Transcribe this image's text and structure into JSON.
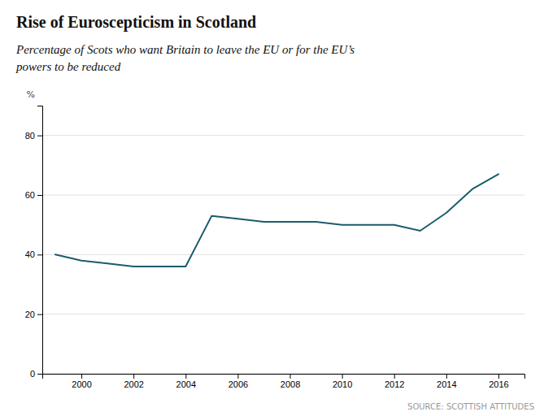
{
  "chart_data": {
    "type": "line",
    "title": "Rise of Euroscepticism in Scotland",
    "subtitle": "Percentage of Scots who want Britain to leave the EU or for the EU’s\npowers to be reduced",
    "source": "SOURCE: SCOTTISH ATTITUDES",
    "ylabel": "%",
    "x": [
      1999,
      2000,
      2001,
      2002,
      2003,
      2004,
      2005,
      2006,
      2007,
      2008,
      2009,
      2010,
      2011,
      2012,
      2013,
      2014,
      2015,
      2016
    ],
    "values": [
      40,
      38,
      37,
      36,
      36,
      36,
      53,
      52,
      51,
      51,
      51,
      50,
      50,
      50,
      48,
      54,
      62,
      67
    ],
    "color": "#1a5c6b",
    "xlim": [
      1998.5,
      2017
    ],
    "ylim": [
      0,
      90
    ],
    "xticks": [
      2000,
      2002,
      2004,
      2006,
      2008,
      2010,
      2012,
      2014,
      2016
    ],
    "yticks": [
      0,
      20,
      40,
      60,
      80
    ],
    "grid": true
  }
}
